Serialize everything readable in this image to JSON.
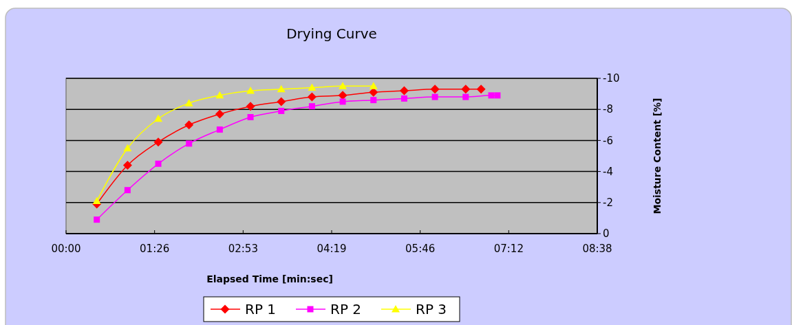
{
  "chart_data": {
    "type": "line",
    "title": "Drying Curve",
    "xlabel": "Elapsed Time [min:sec]",
    "ylabel": "Moisture Content [%]",
    "xlim": [
      0,
      518.4
    ],
    "xticks": [
      {
        "value": 0,
        "label": "00:00"
      },
      {
        "value": 86.4,
        "label": "01:26"
      },
      {
        "value": 172.8,
        "label": "02:53"
      },
      {
        "value": 259.2,
        "label": "04:19"
      },
      {
        "value": 345.6,
        "label": "05:46"
      },
      {
        "value": 432,
        "label": "07:12"
      },
      {
        "value": 518.4,
        "label": "08:38"
      }
    ],
    "ylim": [
      0,
      -10
    ],
    "yticks": [
      0,
      -2,
      -4,
      -6,
      -8,
      -10
    ],
    "grid": "y",
    "legend": "bottom",
    "series": [
      {
        "name": "RP 1",
        "color": "#ff0000",
        "marker": "diamond",
        "x": [
          30,
          60,
          90,
          120,
          150,
          180,
          210,
          240,
          270,
          300,
          330,
          360,
          390,
          405
        ],
        "values": [
          -1.9,
          -4.4,
          -5.9,
          -7.0,
          -7.7,
          -8.2,
          -8.5,
          -8.8,
          -8.9,
          -9.1,
          -9.2,
          -9.3,
          -9.3,
          -9.3
        ]
      },
      {
        "name": "RP 2",
        "color": "#ff00ff",
        "marker": "square",
        "x": [
          30,
          60,
          90,
          120,
          150,
          180,
          210,
          240,
          270,
          300,
          330,
          360,
          390,
          415,
          421
        ],
        "values": [
          -0.9,
          -2.8,
          -4.5,
          -5.8,
          -6.7,
          -7.5,
          -7.9,
          -8.2,
          -8.5,
          -8.6,
          -8.7,
          -8.8,
          -8.8,
          -8.9,
          -8.9
        ]
      },
      {
        "name": "RP 3",
        "color": "#ffff00",
        "marker": "triangle",
        "x": [
          30,
          60,
          90,
          120,
          150,
          180,
          210,
          240,
          270,
          300
        ],
        "values": [
          -2.1,
          -5.5,
          -7.4,
          -8.4,
          -8.9,
          -9.2,
          -9.3,
          -9.4,
          -9.5,
          -9.5
        ]
      }
    ]
  }
}
